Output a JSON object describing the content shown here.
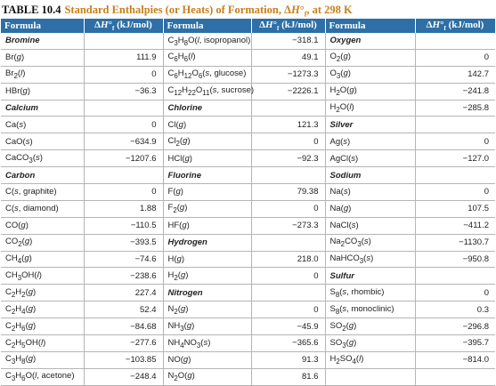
{
  "caption": {
    "number": "TABLE 10.4",
    "title": "Standard Enthalpies (or Heats) of Formation, ΔH°f, at 298 K"
  },
  "headers": [
    "Formula",
    "ΔH°f (kJ/mol)",
    "Formula",
    "ΔH°f (kJ/mol)",
    "Formula",
    "ΔH°f (kJ/mol)"
  ],
  "rows": [
    [
      {
        "t": "Bromine",
        "c": 1
      },
      {
        "t": ""
      },
      {
        "t": "C3H8O(l, isopropanol)",
        "h": "C<sub>3</sub>H<sub>8</sub>O(<i>l</i>, isopropanol)"
      },
      {
        "t": "−318.1"
      },
      {
        "t": "Oxygen",
        "c": 1
      },
      {
        "t": ""
      }
    ],
    [
      {
        "t": "Br(g)",
        "h": "Br(<i>g</i>)"
      },
      {
        "t": "111.9"
      },
      {
        "t": "C6H6(l)",
        "h": "C<sub>6</sub>H<sub>6</sub>(<i>l</i>)"
      },
      {
        "t": "49.1"
      },
      {
        "t": "O2(g)",
        "h": "O<sub>2</sub>(<i>g</i>)"
      },
      {
        "t": "0"
      }
    ],
    [
      {
        "t": "Br2(l)",
        "h": "Br<sub>2</sub>(<i>l</i>)"
      },
      {
        "t": "0"
      },
      {
        "t": "C6H12O6(s, glucose)",
        "h": "C<sub>6</sub>H<sub>12</sub>O<sub>6</sub>(<i>s</i>, glucose)"
      },
      {
        "t": "−1273.3"
      },
      {
        "t": "O3(g)",
        "h": "O<sub>3</sub>(<i>g</i>)"
      },
      {
        "t": "142.7"
      }
    ],
    [
      {
        "t": "HBr(g)",
        "h": "HBr(<i>g</i>)"
      },
      {
        "t": "−36.3"
      },
      {
        "t": "C12H22O11(s, sucrose)",
        "h": "C<sub>12</sub>H<sub>22</sub>O<sub>11</sub>(<i>s</i>, sucrose)"
      },
      {
        "t": "−2226.1"
      },
      {
        "t": "H2O(g)",
        "h": "H<sub>2</sub>O(<i>g</i>)"
      },
      {
        "t": "−241.8"
      }
    ],
    [
      {
        "t": "Calcium",
        "c": 1
      },
      {
        "t": ""
      },
      {
        "t": "Chlorine",
        "c": 1
      },
      {
        "t": ""
      },
      {
        "t": "H2O(l)",
        "h": "H<sub>2</sub>O(<i>l</i>)"
      },
      {
        "t": "−285.8"
      }
    ],
    [
      {
        "t": "Ca(s)",
        "h": "Ca(<i>s</i>)"
      },
      {
        "t": "0"
      },
      {
        "t": "Cl(g)",
        "h": "Cl(<i>g</i>)"
      },
      {
        "t": "121.3"
      },
      {
        "t": "Silver",
        "c": 1
      },
      {
        "t": ""
      }
    ],
    [
      {
        "t": "CaO(s)",
        "h": "CaO(<i>s</i>)"
      },
      {
        "t": "−634.9"
      },
      {
        "t": "Cl2(g)",
        "h": "Cl<sub>2</sub>(<i>g</i>)"
      },
      {
        "t": "0"
      },
      {
        "t": "Ag(s)",
        "h": "Ag(<i>s</i>)"
      },
      {
        "t": "0"
      }
    ],
    [
      {
        "t": "CaCO3(s)",
        "h": "CaCO<sub>3</sub>(<i>s</i>)"
      },
      {
        "t": "−1207.6"
      },
      {
        "t": "HCl(g)",
        "h": "HCl(<i>g</i>)"
      },
      {
        "t": "−92.3"
      },
      {
        "t": "AgCl(s)",
        "h": "AgCl(<i>s</i>)"
      },
      {
        "t": "−127.0"
      }
    ],
    [
      {
        "t": "Carbon",
        "c": 1
      },
      {
        "t": ""
      },
      {
        "t": "Fluorine",
        "c": 1
      },
      {
        "t": ""
      },
      {
        "t": "Sodium",
        "c": 1
      },
      {
        "t": ""
      }
    ],
    [
      {
        "t": "C(s, graphite)",
        "h": "C(<i>s</i>, graphite)"
      },
      {
        "t": "0"
      },
      {
        "t": "F(g)",
        "h": "F(<i>g</i>)"
      },
      {
        "t": "79.38"
      },
      {
        "t": "Na(s)",
        "h": "Na(<i>s</i>)"
      },
      {
        "t": "0"
      }
    ],
    [
      {
        "t": "C(s, diamond)",
        "h": "C(<i>s</i>, diamond)"
      },
      {
        "t": "1.88"
      },
      {
        "t": "F2(g)",
        "h": "F<sub>2</sub>(<i>g</i>)"
      },
      {
        "t": "0"
      },
      {
        "t": "Na(g)",
        "h": "Na(<i>g</i>)"
      },
      {
        "t": "107.5"
      }
    ],
    [
      {
        "t": "CO(g)",
        "h": "CO(<i>g</i>)"
      },
      {
        "t": "−110.5"
      },
      {
        "t": "HF(g)",
        "h": "HF(<i>g</i>)"
      },
      {
        "t": "−273.3"
      },
      {
        "t": "NaCl(s)",
        "h": "NaCl(<i>s</i>)"
      },
      {
        "t": "−411.2"
      }
    ],
    [
      {
        "t": "CO2(g)",
        "h": "CO<sub>2</sub>(<i>g</i>)"
      },
      {
        "t": "−393.5"
      },
      {
        "t": "Hydrogen",
        "c": 1
      },
      {
        "t": ""
      },
      {
        "t": "Na2CO3(s)",
        "h": "Na<sub>2</sub>CO<sub>3</sub>(<i>s</i>)"
      },
      {
        "t": "−1130.7"
      }
    ],
    [
      {
        "t": "CH4(g)",
        "h": "CH<sub>4</sub>(<i>g</i>)"
      },
      {
        "t": "−74.6"
      },
      {
        "t": "H(g)",
        "h": "H(<i>g</i>)"
      },
      {
        "t": "218.0"
      },
      {
        "t": "NaHCO3(s)",
        "h": "NaHCO<sub>3</sub>(<i>s</i>)"
      },
      {
        "t": "−950.8"
      }
    ],
    [
      {
        "t": "CH3OH(l)",
        "h": "CH<sub>3</sub>OH(<i>l</i>)"
      },
      {
        "t": "−238.6"
      },
      {
        "t": "H2(g)",
        "h": "H<sub>2</sub>(<i>g</i>)"
      },
      {
        "t": "0"
      },
      {
        "t": "Sulfur",
        "c": 1
      },
      {
        "t": ""
      }
    ],
    [
      {
        "t": "C2H2(g)",
        "h": "C<sub>2</sub>H<sub>2</sub>(<i>g</i>)"
      },
      {
        "t": "227.4"
      },
      {
        "t": "Nitrogen",
        "c": 1
      },
      {
        "t": ""
      },
      {
        "t": "S8(s, rhombic)",
        "h": "S<sub>8</sub>(<i>s</i>, rhombic)"
      },
      {
        "t": "0"
      }
    ],
    [
      {
        "t": "C2H4(g)",
        "h": "C<sub>2</sub>H<sub>4</sub>(<i>g</i>)"
      },
      {
        "t": "52.4"
      },
      {
        "t": "N2(g)",
        "h": "N<sub>2</sub>(<i>g</i>)"
      },
      {
        "t": "0"
      },
      {
        "t": "S8(s, monoclinic)",
        "h": "S<sub>8</sub>(<i>s</i>, monoclinic)"
      },
      {
        "t": "0.3"
      }
    ],
    [
      {
        "t": "C2H6(g)",
        "h": "C<sub>2</sub>H<sub>6</sub>(<i>g</i>)"
      },
      {
        "t": "−84.68"
      },
      {
        "t": "NH3(g)",
        "h": "NH<sub>3</sub>(<i>g</i>)"
      },
      {
        "t": "−45.9"
      },
      {
        "t": "SO2(g)",
        "h": "SO<sub>2</sub>(<i>g</i>)"
      },
      {
        "t": "−296.8"
      }
    ],
    [
      {
        "t": "C2H5OH(l)",
        "h": "C<sub>2</sub>H<sub>5</sub>OH(<i>l</i>)"
      },
      {
        "t": "−277.6"
      },
      {
        "t": "NH4NO3(s)",
        "h": "NH<sub>4</sub>NO<sub>3</sub>(<i>s</i>)"
      },
      {
        "t": "−365.6"
      },
      {
        "t": "SO3(g)",
        "h": "SO<sub>3</sub>(<i>g</i>)"
      },
      {
        "t": "−395.7"
      }
    ],
    [
      {
        "t": "C3H8(g)",
        "h": "C<sub>3</sub>H<sub>8</sub>(<i>g</i>)"
      },
      {
        "t": "−103.85"
      },
      {
        "t": "NO(g)",
        "h": "NO(<i>g</i>)"
      },
      {
        "t": "91.3"
      },
      {
        "t": "H2SO4(l)",
        "h": "H<sub>2</sub>SO<sub>4</sub>(<i>l</i>)"
      },
      {
        "t": "−814.0"
      }
    ],
    [
      {
        "t": "C3H6O(l, acetone)",
        "h": "C<sub>3</sub>H<sub>6</sub>O(<i>l</i>, acetone)"
      },
      {
        "t": "−248.4"
      },
      {
        "t": "N2O(g)",
        "h": "N<sub>2</sub>O(<i>g</i>)"
      },
      {
        "t": "81.6"
      },
      {
        "t": ""
      },
      {
        "t": ""
      }
    ]
  ]
}
